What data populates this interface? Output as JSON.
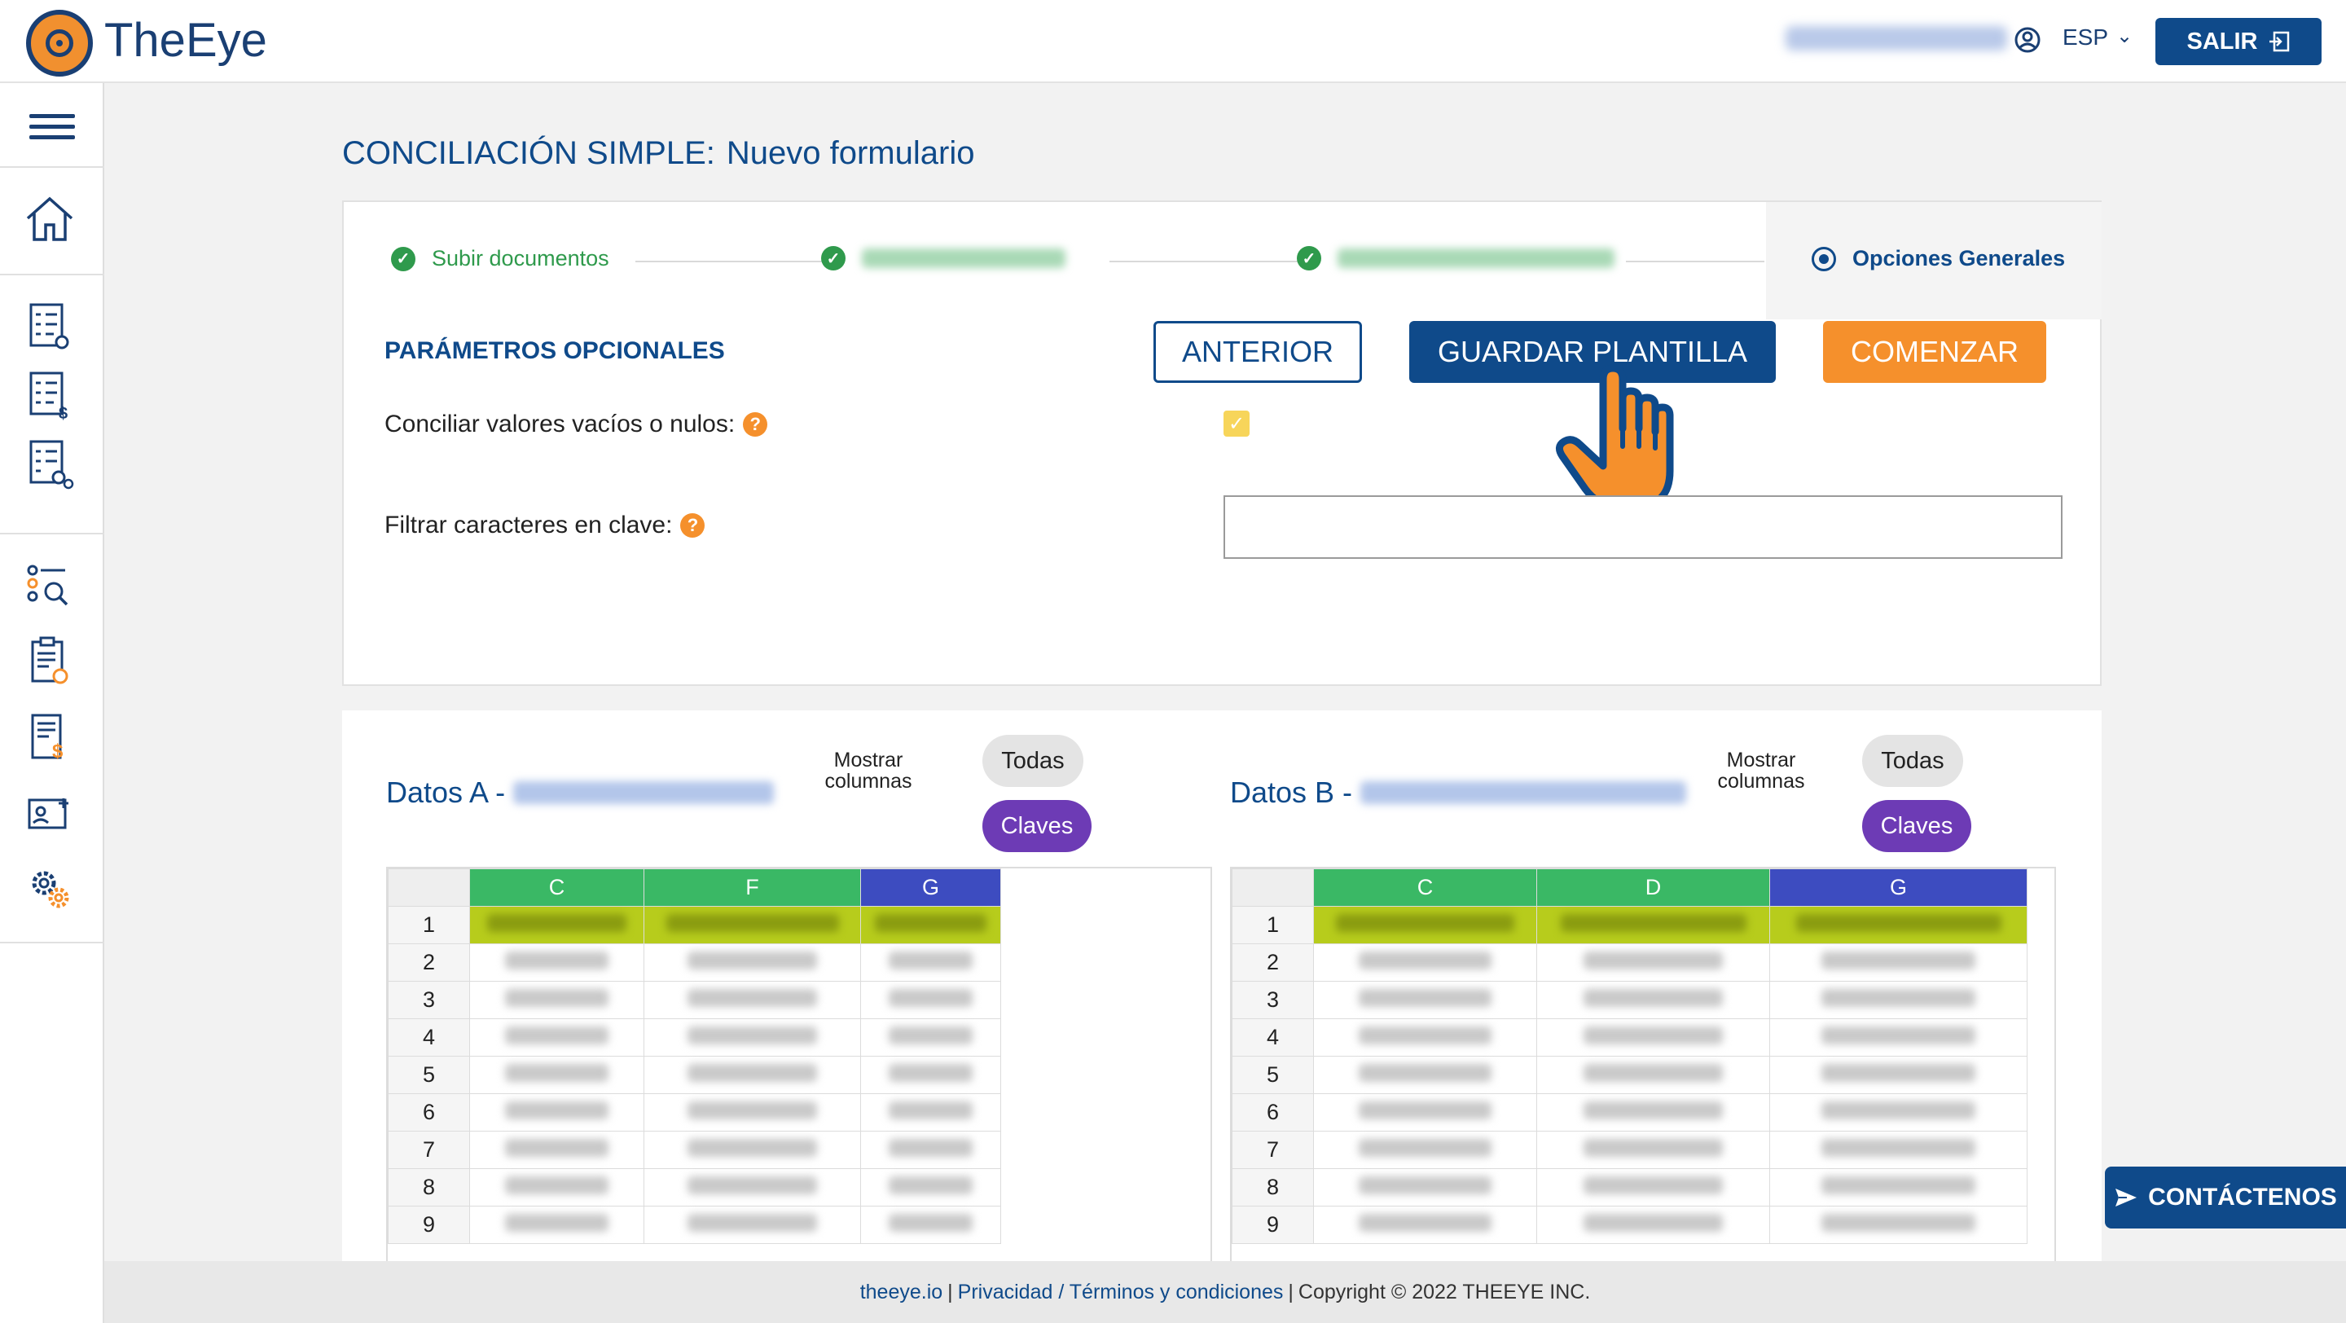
{
  "header": {
    "brand": "TheEye",
    "language": "ESP",
    "logout_label": "SALIR"
  },
  "page": {
    "title": "CONCILIACIÓN SIMPLE:",
    "subtitle": "Nuevo formulario"
  },
  "stepper": {
    "steps": [
      {
        "label": "Subir documentos",
        "state": "done"
      },
      {
        "label": "",
        "state": "done"
      },
      {
        "label": "",
        "state": "done"
      },
      {
        "label": "Opciones Generales",
        "state": "active"
      }
    ]
  },
  "options": {
    "section_label": "PARÁMETROS OPCIONALES",
    "btn_previous": "ANTERIOR",
    "btn_save_template": "GUARDAR PLANTILLA",
    "btn_start": "COMENZAR",
    "empty_values_label": "Conciliar valores vacíos o nulos:",
    "empty_values_checked": true,
    "filter_chars_label": "Filtrar caracteres en clave:",
    "filter_chars_value": "",
    "help_glyph": "?",
    "check_glyph": "✓"
  },
  "data_a": {
    "title": "Datos A -",
    "show_columns_line1": "Mostrar",
    "show_columns_line2": "columnas",
    "pill_all": "Todas",
    "pill_keys": "Claves",
    "columns": [
      "C",
      "F",
      "G"
    ],
    "rows": [
      "1",
      "2",
      "3",
      "4",
      "5",
      "6",
      "7",
      "8",
      "9"
    ]
  },
  "data_b": {
    "title": "Datos B -",
    "show_columns_line1": "Mostrar",
    "show_columns_line2": "columnas",
    "pill_all": "Todas",
    "pill_keys": "Claves",
    "columns": [
      "C",
      "D",
      "G"
    ],
    "rows": [
      "1",
      "2",
      "3",
      "4",
      "5",
      "6",
      "7",
      "8",
      "9"
    ]
  },
  "contact_label": "CONTÁCTENOS",
  "footer": {
    "link_site": "theeye.io",
    "sep1": "|",
    "link_privacy": "Privacidad / Términos y condiciones",
    "sep2": "|",
    "copyright": "Copyright © 2022 THEEYE INC."
  },
  "colors": {
    "primary": "#0f4a8a",
    "accent": "#f5902c",
    "success": "#2f9a4c",
    "keys_pill": "#6d3bb5",
    "col_green": "#3ab865",
    "col_blue": "#3d4cc0",
    "header_row": "#b7cc1c"
  },
  "icons": {
    "sidebar": [
      "home-icon",
      "checklist-gear-icon",
      "checklist-dollar-icon",
      "checklist-settings-icon",
      "search-list-icon",
      "clipboard-check-icon",
      "invoice-dollar-icon",
      "user-card-icon",
      "gears-icon"
    ]
  }
}
